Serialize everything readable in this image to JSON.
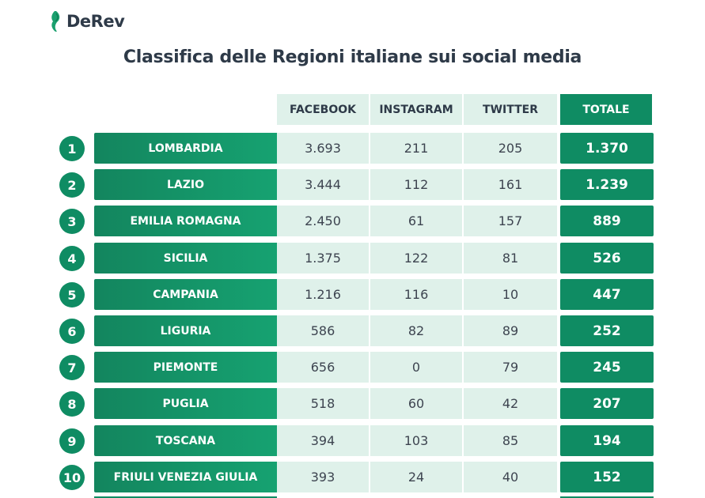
{
  "brand": {
    "name": "DeRev",
    "logo_icon": "derev-leaf-icon",
    "accent_color": "#0f8c63"
  },
  "title": "Classifica delle Regioni italiane sui social media",
  "table": {
    "columns": [
      "FACEBOOK",
      "INSTAGRAM",
      "TWITTER",
      "TOTALE"
    ],
    "rows": [
      {
        "rank": "1",
        "region": "LOMBARDIA",
        "facebook": "3.693",
        "instagram": "211",
        "twitter": "205",
        "total": "1.370"
      },
      {
        "rank": "2",
        "region": "LAZIO",
        "facebook": "3.444",
        "instagram": "112",
        "twitter": "161",
        "total": "1.239"
      },
      {
        "rank": "3",
        "region": "EMILIA ROMAGNA",
        "facebook": "2.450",
        "instagram": "61",
        "twitter": "157",
        "total": "889"
      },
      {
        "rank": "4",
        "region": "SICILIA",
        "facebook": "1.375",
        "instagram": "122",
        "twitter": "81",
        "total": "526"
      },
      {
        "rank": "5",
        "region": "CAMPANIA",
        "facebook": "1.216",
        "instagram": "116",
        "twitter": "10",
        "total": "447"
      },
      {
        "rank": "6",
        "region": "LIGURIA",
        "facebook": "586",
        "instagram": "82",
        "twitter": "89",
        "total": "252"
      },
      {
        "rank": "7",
        "region": "PIEMONTE",
        "facebook": "656",
        "instagram": "0",
        "twitter": "79",
        "total": "245"
      },
      {
        "rank": "8",
        "region": "PUGLIA",
        "facebook": "518",
        "instagram": "60",
        "twitter": "42",
        "total": "207"
      },
      {
        "rank": "9",
        "region": "TOSCANA",
        "facebook": "394",
        "instagram": "103",
        "twitter": "85",
        "total": "194"
      },
      {
        "rank": "10",
        "region": "FRIULI VENEZIA GIULIA",
        "facebook": "393",
        "instagram": "24",
        "twitter": "40",
        "total": "152"
      }
    ]
  }
}
